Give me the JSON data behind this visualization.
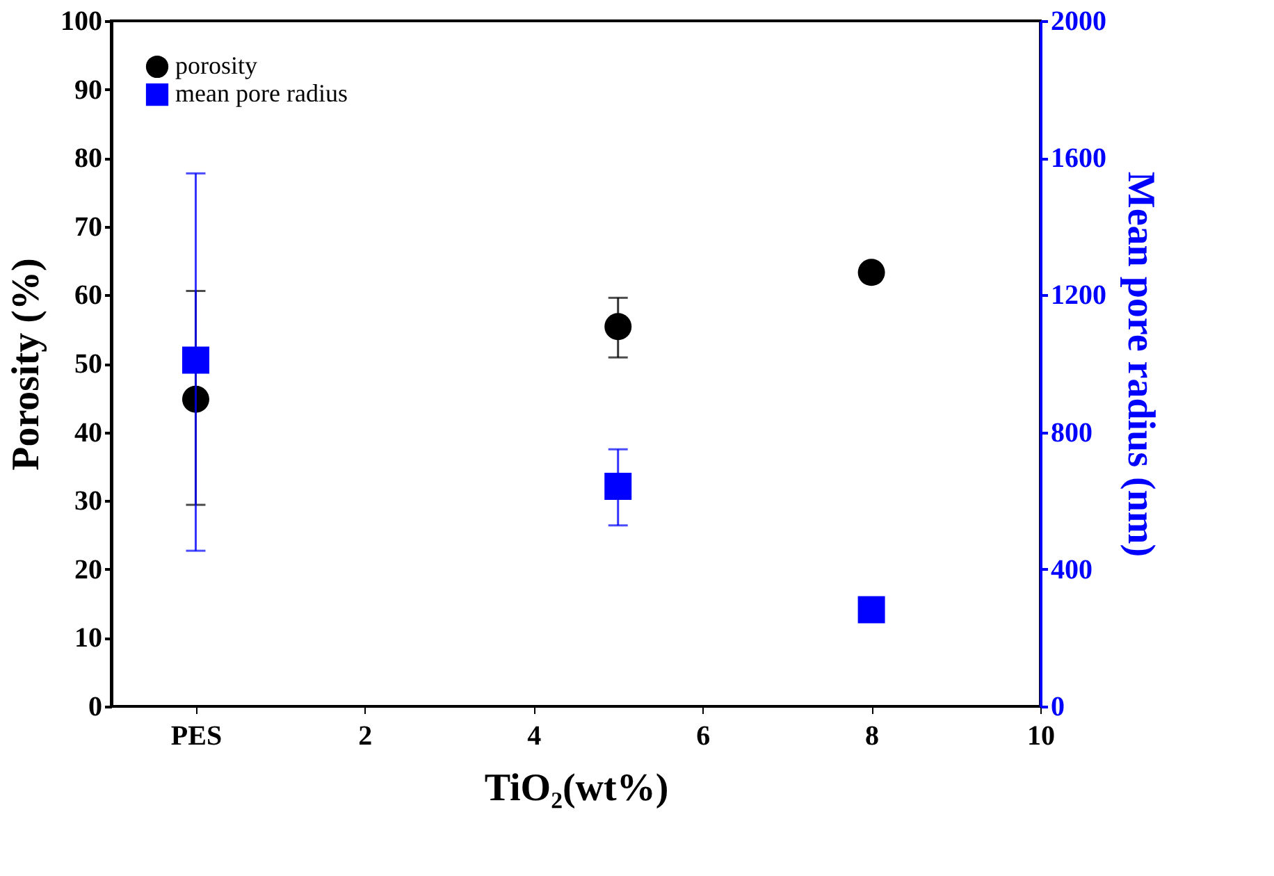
{
  "chart_data": {
    "type": "scatter",
    "xlabel": "TiO₂(wt%)",
    "ylabel": "Porosity (%)",
    "y2label": "Mean pore radius (nm)",
    "x": [
      0,
      5,
      8
    ],
    "xlim": [
      -1,
      10
    ],
    "xticks": [
      {
        "value": 0,
        "label": "PES"
      },
      2,
      4,
      6,
      8,
      10
    ],
    "ylim": [
      0,
      100
    ],
    "yticks": [
      0,
      10,
      20,
      30,
      40,
      50,
      60,
      70,
      80,
      90,
      100
    ],
    "y2lim": [
      0,
      2000
    ],
    "y2ticks": [
      0,
      400,
      800,
      1200,
      1600,
      2000
    ],
    "series": [
      {
        "name": "porosity",
        "color": "#000000",
        "marker": "circle",
        "values": [
          44.8,
          55.4,
          63.3
        ],
        "errors": [
          [
            29.4,
            60.6
          ],
          [
            50.9,
            59.6
          ],
          null
        ]
      },
      {
        "name": "mean pore radius",
        "color": "#0000ff",
        "marker": "square",
        "axis": "y2",
        "values": [
          1010,
          642,
          282
        ],
        "errors": [
          [
            454,
            1555
          ],
          [
            528,
            750
          ],
          null
        ]
      }
    ],
    "grid": false,
    "legend": "top left"
  }
}
